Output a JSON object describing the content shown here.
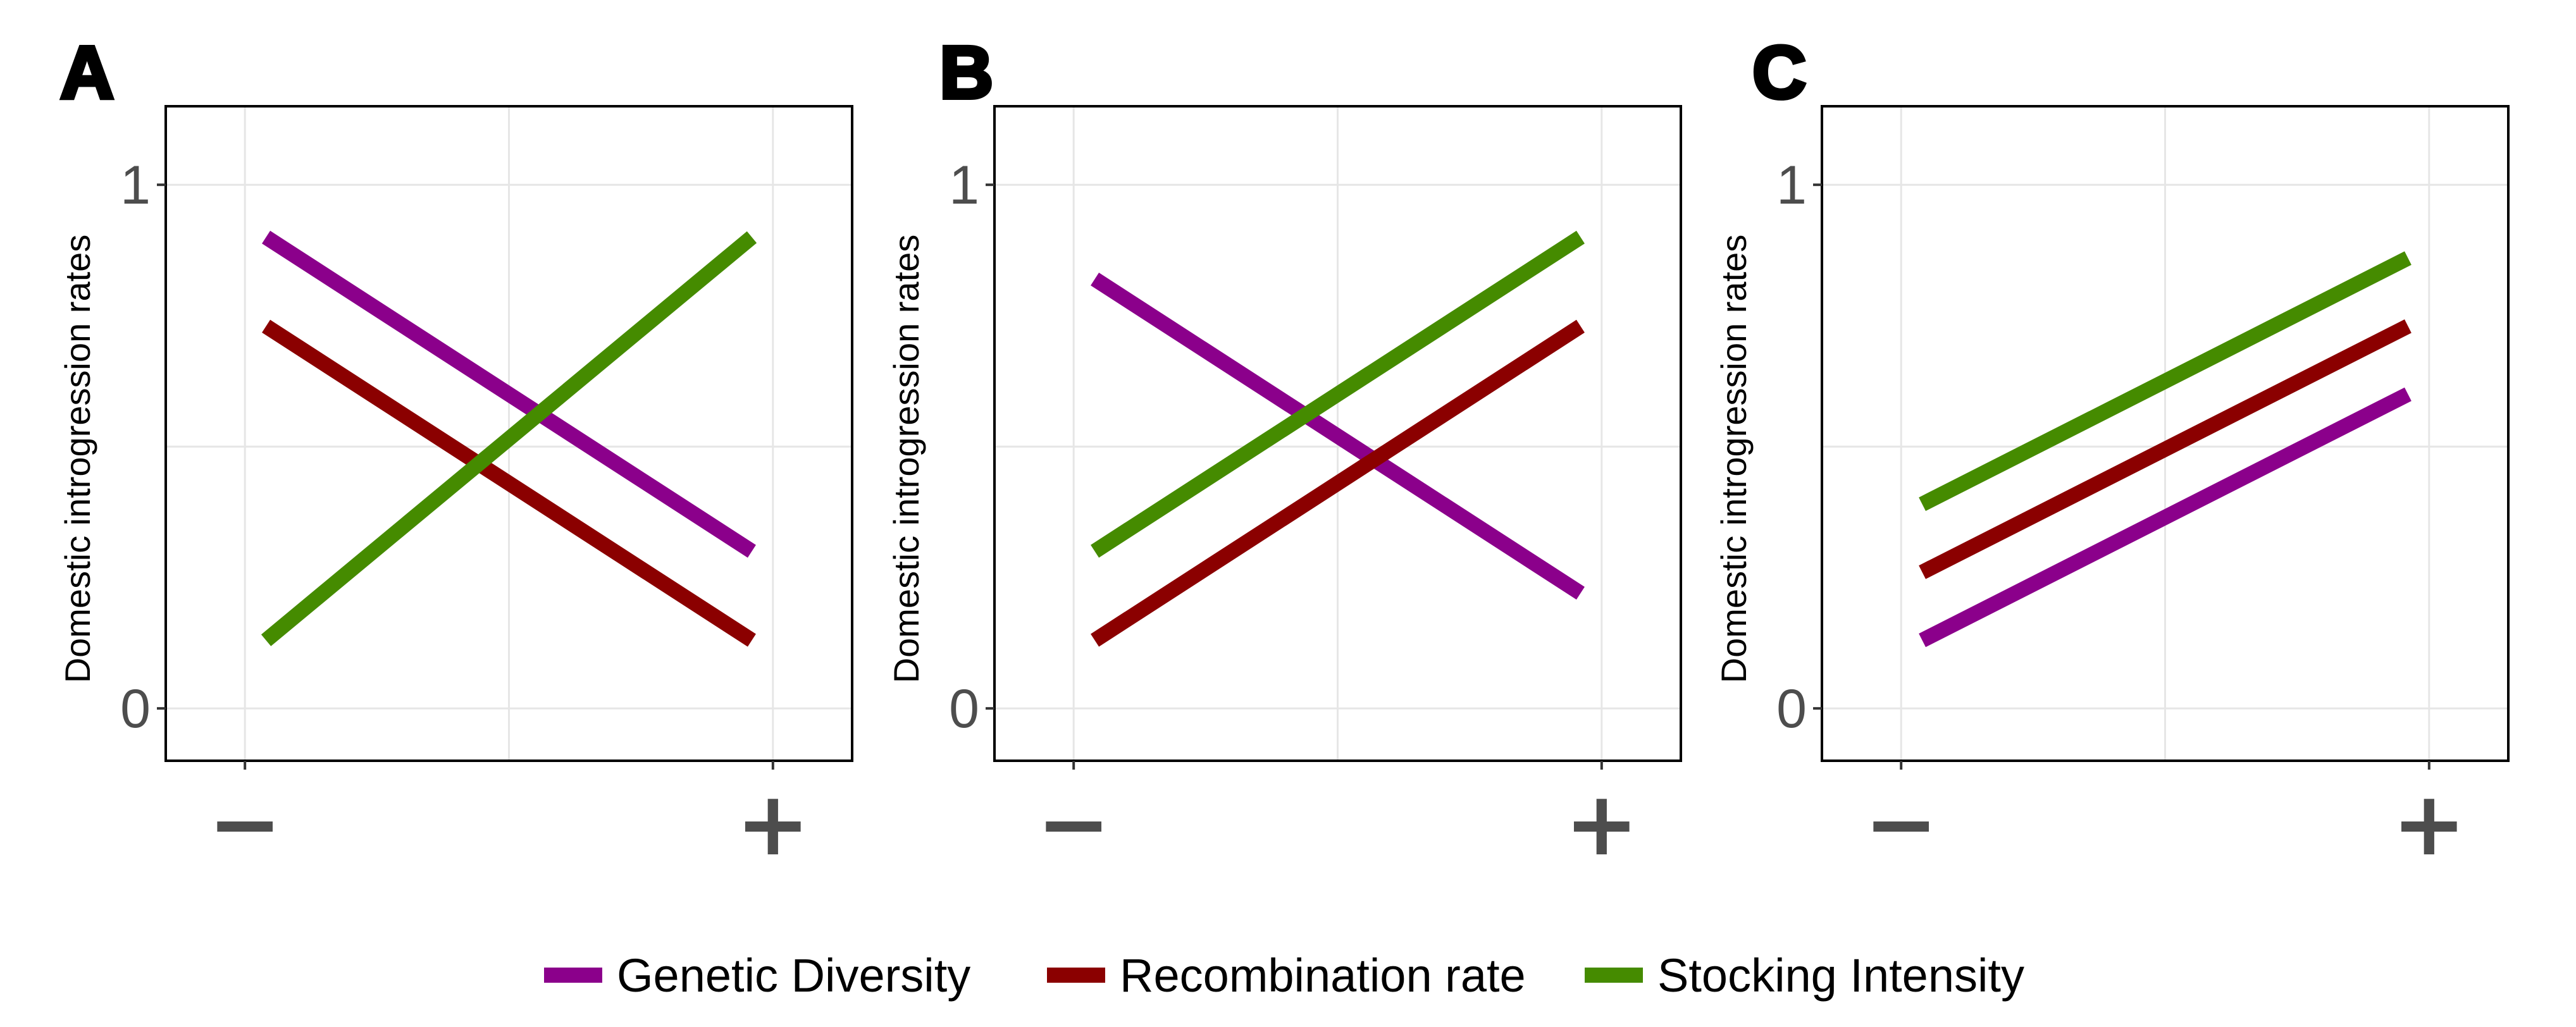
{
  "chart_data": [
    {
      "panel": "A",
      "type": "line",
      "ylabel": "Domestic introgression rates",
      "x_tick_labels": [
        "−",
        "+"
      ],
      "y_tick_labels": [
        "0",
        "1"
      ],
      "ylim": [
        -0.1,
        1.15
      ],
      "xlim": [
        -0.15,
        1.15
      ],
      "grid": true,
      "series": [
        {
          "name": "Genetic Diversity",
          "color": "#8B008B",
          "x": [
            0.04,
            0.96
          ],
          "y": [
            0.9,
            0.3
          ]
        },
        {
          "name": "Recombination rate",
          "color": "#8B0000",
          "x": [
            0.04,
            0.96
          ],
          "y": [
            0.73,
            0.13
          ]
        },
        {
          "name": "Stocking Intensity",
          "color": "#458B00",
          "x": [
            0.04,
            0.96
          ],
          "y": [
            0.13,
            0.9
          ]
        }
      ]
    },
    {
      "panel": "B",
      "type": "line",
      "ylabel": "Domestic introgression rates",
      "x_tick_labels": [
        "−",
        "+"
      ],
      "y_tick_labels": [
        "0",
        "1"
      ],
      "ylim": [
        -0.1,
        1.15
      ],
      "xlim": [
        -0.15,
        1.15
      ],
      "grid": true,
      "series": [
        {
          "name": "Genetic Diversity",
          "color": "#8B008B",
          "x": [
            0.04,
            0.96
          ],
          "y": [
            0.82,
            0.22
          ]
        },
        {
          "name": "Recombination rate",
          "color": "#8B0000",
          "x": [
            0.04,
            0.96
          ],
          "y": [
            0.13,
            0.73
          ]
        },
        {
          "name": "Stocking Intensity",
          "color": "#458B00",
          "x": [
            0.04,
            0.96
          ],
          "y": [
            0.3,
            0.9
          ]
        }
      ]
    },
    {
      "panel": "C",
      "type": "line",
      "ylabel": "Domestic introgression rates",
      "x_tick_labels": [
        "−",
        "+"
      ],
      "y_tick_labels": [
        "0",
        "1"
      ],
      "ylim": [
        -0.1,
        1.15
      ],
      "xlim": [
        -0.15,
        1.15
      ],
      "grid": true,
      "series": [
        {
          "name": "Genetic Diversity",
          "color": "#8B008B",
          "x": [
            0.04,
            0.96
          ],
          "y": [
            0.13,
            0.6
          ]
        },
        {
          "name": "Recombination rate",
          "color": "#8B0000",
          "x": [
            0.04,
            0.96
          ],
          "y": [
            0.26,
            0.73
          ]
        },
        {
          "name": "Stocking Intensity",
          "color": "#458B00",
          "x": [
            0.04,
            0.96
          ],
          "y": [
            0.39,
            0.86
          ]
        }
      ]
    }
  ],
  "legend": {
    "placement": "bottom",
    "items": [
      {
        "label": "Genetic Diversity",
        "color": "#8B008B"
      },
      {
        "label": "Recombination rate",
        "color": "#8B0000"
      },
      {
        "label": "Stocking Intensity",
        "color": "#458B00"
      }
    ]
  }
}
